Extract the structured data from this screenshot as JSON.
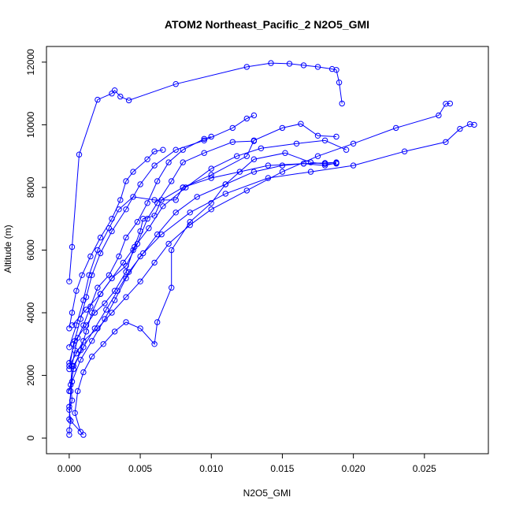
{
  "chart_data": {
    "type": "line",
    "title": "ATOM2 Northeast_Pacific_2 N2O5_GMI",
    "xlabel": "N2O5_GMI",
    "ylabel": "Altitude (m)",
    "xlim": [
      -0.0016,
      0.0295
    ],
    "ylim": [
      -500,
      12500
    ],
    "x_ticks": [
      0,
      0.005,
      0.01,
      0.015,
      0.02,
      0.025
    ],
    "x_tick_labels": [
      "0.000",
      "0.005",
      "0.010",
      "0.015",
      "0.020",
      "0.025"
    ],
    "y_ticks": [
      0,
      2000,
      4000,
      6000,
      8000,
      10000,
      12000
    ],
    "y_tick_labels": [
      "0",
      "2000",
      "4000",
      "6000",
      "8000",
      "10000",
      "12000"
    ],
    "grid": false,
    "marker": "open-circle",
    "series_color": "#0000ff",
    "series": [
      {
        "points": [
          [
            0.0,
            100
          ],
          [
            0.0,
            250
          ],
          [
            0.0001,
            550
          ],
          [
            0.0,
            900
          ],
          [
            0.0002,
            1200
          ],
          [
            0.0001,
            1700
          ],
          [
            0.0002,
            2300
          ],
          [
            0.0004,
            2800
          ],
          [
            0.0006,
            3200
          ],
          [
            0.001,
            3600
          ],
          [
            0.0015,
            4200
          ],
          [
            0.002,
            4800
          ],
          [
            0.0028,
            5200
          ],
          [
            0.0035,
            5800
          ],
          [
            0.004,
            6400
          ],
          [
            0.0048,
            6900
          ],
          [
            0.0055,
            7500
          ],
          [
            0.0062,
            8200
          ],
          [
            0.007,
            8800
          ],
          [
            0.008,
            9200
          ],
          [
            0.0095,
            9550
          ],
          [
            0.01,
            9620
          ]
        ]
      },
      {
        "points": [
          [
            0.001,
            100
          ],
          [
            0.0,
            600
          ],
          [
            0.0001,
            1500
          ],
          [
            0.0003,
            2300
          ],
          [
            0.001,
            2900
          ],
          [
            0.0018,
            3500
          ],
          [
            0.0026,
            4100
          ],
          [
            0.0034,
            4700
          ],
          [
            0.0042,
            5300
          ],
          [
            0.0052,
            5900
          ],
          [
            0.0062,
            6500
          ],
          [
            0.0075,
            7200
          ],
          [
            0.009,
            7700
          ],
          [
            0.011,
            8100
          ],
          [
            0.013,
            8500
          ],
          [
            0.015,
            8700
          ],
          [
            0.0165,
            8760
          ],
          [
            0.018,
            8780
          ],
          [
            0.0188,
            8800
          ]
        ]
      },
      {
        "points": [
          [
            0.0,
            2300
          ],
          [
            0.0005,
            2700
          ],
          [
            0.001,
            3100
          ],
          [
            0.002,
            3500
          ],
          [
            0.003,
            4000
          ],
          [
            0.004,
            4500
          ],
          [
            0.005,
            5000
          ],
          [
            0.006,
            5600
          ],
          [
            0.007,
            6200
          ],
          [
            0.0085,
            6800
          ],
          [
            0.01,
            7300
          ],
          [
            0.0125,
            7900
          ],
          [
            0.015,
            8500
          ],
          [
            0.0175,
            9000
          ],
          [
            0.02,
            9400
          ],
          [
            0.023,
            9900
          ],
          [
            0.026,
            10300
          ],
          [
            0.0265,
            10670
          ],
          [
            0.0268,
            10680
          ]
        ]
      },
      {
        "points": [
          [
            0.0,
            1000
          ],
          [
            0.0002,
            1800
          ],
          [
            0.0008,
            2500
          ],
          [
            0.0016,
            3100
          ],
          [
            0.0025,
            3800
          ],
          [
            0.0032,
            4400
          ],
          [
            0.004,
            5100
          ],
          [
            0.005,
            5800
          ],
          [
            0.0065,
            6500
          ],
          [
            0.0085,
            7200
          ],
          [
            0.011,
            7800
          ],
          [
            0.014,
            8300
          ],
          [
            0.017,
            8500
          ],
          [
            0.02,
            8700
          ],
          [
            0.0236,
            9150
          ],
          [
            0.0265,
            9450
          ],
          [
            0.0275,
            9870
          ],
          [
            0.0282,
            10020
          ],
          [
            0.0285,
            10000
          ]
        ]
      },
      {
        "points": [
          [
            0.0,
            2200
          ],
          [
            0.0003,
            3000
          ],
          [
            0.0008,
            3800
          ],
          [
            0.0012,
            4500
          ],
          [
            0.0016,
            5200
          ],
          [
            0.0022,
            5900
          ],
          [
            0.003,
            6600
          ],
          [
            0.004,
            7300
          ],
          [
            0.005,
            8100
          ],
          [
            0.006,
            8700
          ],
          [
            0.0075,
            9200
          ],
          [
            0.0095,
            9500
          ],
          [
            0.0115,
            9900
          ],
          [
            0.0125,
            10200
          ],
          [
            0.013,
            10300
          ]
        ]
      },
      {
        "points": [
          [
            0.0,
            2900
          ],
          [
            0.0005,
            3600
          ],
          [
            0.001,
            4400
          ],
          [
            0.0014,
            5200
          ],
          [
            0.002,
            6000
          ],
          [
            0.0028,
            6700
          ],
          [
            0.0035,
            7300
          ],
          [
            0.0045,
            7700
          ],
          [
            0.006,
            7600
          ],
          [
            0.0075,
            7600
          ],
          [
            0.008,
            8000
          ],
          [
            0.01,
            8400
          ],
          [
            0.0125,
            9000
          ],
          [
            0.013,
            9500
          ],
          [
            0.015,
            9900
          ],
          [
            0.0163,
            10030
          ],
          [
            0.0175,
            9650
          ],
          [
            0.0188,
            9620
          ]
        ]
      },
      {
        "points": [
          [
            0.0002,
            3600
          ],
          [
            0.0012,
            4100
          ],
          [
            0.0022,
            4600
          ],
          [
            0.003,
            5100
          ],
          [
            0.004,
            5500
          ],
          [
            0.0048,
            6200
          ],
          [
            0.0055,
            7000
          ],
          [
            0.0062,
            7500
          ],
          [
            0.0072,
            8200
          ],
          [
            0.008,
            8800
          ],
          [
            0.0095,
            9100
          ],
          [
            0.0115,
            9450
          ],
          [
            0.013,
            9480
          ]
        ]
      },
      {
        "points": [
          [
            0.0008,
            200
          ],
          [
            0.0004,
            800
          ],
          [
            0.0006,
            1500
          ],
          [
            0.001,
            2100
          ],
          [
            0.0016,
            2600
          ],
          [
            0.0024,
            3000
          ],
          [
            0.0032,
            3400
          ],
          [
            0.004,
            3700
          ],
          [
            0.005,
            3500
          ],
          [
            0.006,
            3000
          ],
          [
            0.0062,
            3700
          ],
          [
            0.0072,
            4800
          ],
          [
            0.0072,
            6000
          ],
          [
            0.0085,
            6900
          ],
          [
            0.01,
            7500
          ],
          [
            0.011,
            8100
          ],
          [
            0.013,
            8900
          ],
          [
            0.0152,
            9100
          ],
          [
            0.017,
            8800
          ],
          [
            0.018,
            8750
          ],
          [
            0.0188,
            8760
          ]
        ]
      },
      {
        "points": [
          [
            0.0,
            5000
          ],
          [
            0.0002,
            6100
          ],
          [
            0.0007,
            9050
          ],
          [
            0.002,
            10800
          ],
          [
            0.003,
            11000
          ],
          [
            0.0032,
            11100
          ],
          [
            0.0036,
            10900
          ],
          [
            0.0042,
            10780
          ],
          [
            0.0075,
            11300
          ],
          [
            0.0125,
            11850
          ],
          [
            0.0142,
            11970
          ],
          [
            0.0155,
            11950
          ],
          [
            0.0165,
            11900
          ],
          [
            0.0175,
            11850
          ],
          [
            0.0185,
            11780
          ],
          [
            0.0188,
            11750
          ],
          [
            0.019,
            11350
          ],
          [
            0.0192,
            10680
          ]
        ]
      },
      {
        "points": [
          [
            0.0,
            2400
          ],
          [
            0.0004,
            3100
          ],
          [
            0.0012,
            3600
          ],
          [
            0.0018,
            4000
          ],
          [
            0.0025,
            4300
          ],
          [
            0.0032,
            4700
          ],
          [
            0.004,
            5300
          ],
          [
            0.0045,
            6000
          ],
          [
            0.005,
            6600
          ],
          [
            0.0052,
            7000
          ],
          [
            0.006,
            7100
          ],
          [
            0.0065,
            7600
          ],
          [
            0.008,
            8000
          ],
          [
            0.01,
            8300
          ],
          [
            0.012,
            8500
          ],
          [
            0.014,
            8700
          ],
          [
            0.0165,
            8760
          ],
          [
            0.018,
            8700
          ],
          [
            0.0188,
            8780
          ]
        ]
      },
      {
        "points": [
          [
            0.0,
            3500
          ],
          [
            0.0002,
            4000
          ],
          [
            0.0005,
            4700
          ],
          [
            0.0009,
            5200
          ],
          [
            0.0015,
            5800
          ],
          [
            0.0022,
            6400
          ],
          [
            0.003,
            7000
          ],
          [
            0.0036,
            7600
          ],
          [
            0.004,
            8200
          ],
          [
            0.0045,
            8500
          ],
          [
            0.0055,
            8900
          ],
          [
            0.006,
            9150
          ],
          [
            0.0066,
            9200
          ]
        ]
      },
      {
        "points": [
          [
            0.0,
            1500
          ],
          [
            0.0003,
            2200
          ],
          [
            0.0008,
            2800
          ],
          [
            0.0012,
            3400
          ],
          [
            0.0016,
            4000
          ],
          [
            0.0022,
            4600
          ],
          [
            0.003,
            5100
          ],
          [
            0.0038,
            5600
          ],
          [
            0.0046,
            6100
          ],
          [
            0.0056,
            6700
          ],
          [
            0.0066,
            7400
          ],
          [
            0.0082,
            8000
          ],
          [
            0.01,
            8600
          ],
          [
            0.0118,
            9000
          ],
          [
            0.0135,
            9250
          ],
          [
            0.016,
            9400
          ],
          [
            0.018,
            9500
          ],
          [
            0.0195,
            9200
          ]
        ]
      }
    ]
  }
}
